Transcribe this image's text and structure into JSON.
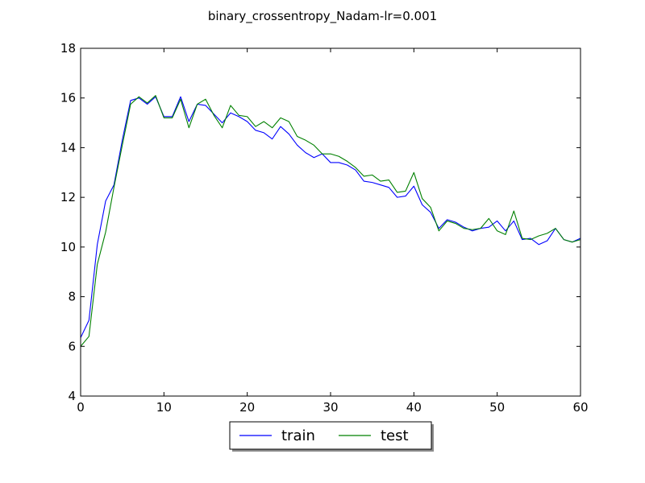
{
  "chart_data": {
    "type": "line",
    "title": "binary_crossentropy_Nadam-lr=0.001",
    "xlabel": "",
    "ylabel": "",
    "xlim": [
      0,
      60
    ],
    "ylim": [
      4,
      18
    ],
    "xticks": [
      0,
      10,
      20,
      30,
      40,
      50,
      60
    ],
    "yticks": [
      4,
      6,
      8,
      10,
      12,
      14,
      16,
      18
    ],
    "grid": false,
    "legend": {
      "position": "bottom-center",
      "ncol": 2
    },
    "x": [
      0,
      1,
      2,
      3,
      4,
      5,
      6,
      7,
      8,
      9,
      10,
      11,
      12,
      13,
      14,
      15,
      16,
      17,
      18,
      19,
      20,
      21,
      22,
      23,
      24,
      25,
      26,
      27,
      28,
      29,
      30,
      31,
      32,
      33,
      34,
      35,
      36,
      37,
      38,
      39,
      40,
      41,
      42,
      43,
      44,
      45,
      46,
      47,
      48,
      49,
      50,
      51,
      52,
      53,
      54,
      55,
      56,
      57,
      58,
      59,
      60
    ],
    "series": [
      {
        "name": "train",
        "color": "#0000ff",
        "values": [
          6.35,
          7.05,
          10.1,
          11.85,
          12.5,
          14.3,
          15.9,
          16.0,
          15.75,
          16.05,
          15.25,
          15.25,
          16.05,
          15.05,
          15.75,
          15.7,
          15.35,
          15.0,
          15.4,
          15.25,
          15.05,
          14.7,
          14.6,
          14.35,
          14.85,
          14.55,
          14.1,
          13.8,
          13.6,
          13.75,
          13.4,
          13.4,
          13.3,
          13.1,
          12.65,
          12.6,
          12.5,
          12.4,
          12.0,
          12.05,
          12.45,
          11.7,
          11.4,
          10.75,
          11.1,
          11.0,
          10.8,
          10.65,
          10.75,
          10.8,
          11.05,
          10.65,
          11.05,
          10.3,
          10.35,
          10.1,
          10.25,
          10.75,
          10.3,
          10.2,
          10.35
        ]
      },
      {
        "name": "test",
        "color": "#008000",
        "values": [
          6.0,
          6.4,
          9.3,
          10.6,
          12.4,
          14.1,
          15.75,
          16.05,
          15.8,
          16.1,
          15.2,
          15.2,
          15.95,
          14.8,
          15.75,
          15.95,
          15.3,
          14.8,
          15.7,
          15.3,
          15.25,
          14.85,
          15.05,
          14.8,
          15.2,
          15.05,
          14.45,
          14.3,
          14.1,
          13.75,
          13.75,
          13.65,
          13.45,
          13.2,
          12.85,
          12.9,
          12.65,
          12.7,
          12.2,
          12.25,
          13.0,
          11.95,
          11.6,
          10.65,
          11.05,
          10.95,
          10.75,
          10.7,
          10.75,
          11.15,
          10.65,
          10.5,
          11.45,
          10.35,
          10.3,
          10.45,
          10.55,
          10.75,
          10.3,
          10.2,
          10.3
        ]
      }
    ]
  }
}
